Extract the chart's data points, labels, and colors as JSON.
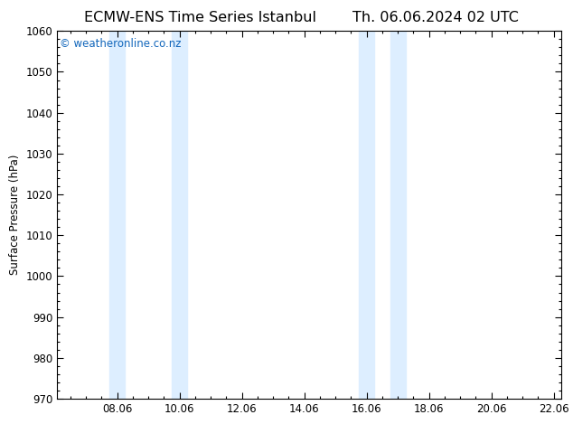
{
  "title_left": "ECMW-ENS Time Series Istanbul",
  "title_right": "Th. 06.06.2024 02 UTC",
  "ylabel": "Surface Pressure (hPa)",
  "ylim": [
    970,
    1060
  ],
  "yticks": [
    970,
    980,
    990,
    1000,
    1010,
    1020,
    1030,
    1040,
    1050,
    1060
  ],
  "xtick_labels": [
    "08.06",
    "10.06",
    "12.06",
    "14.06",
    "16.06",
    "18.06",
    "20.06",
    "22.06"
  ],
  "xtick_positions": [
    2,
    4,
    6,
    8,
    10,
    12,
    14,
    16
  ],
  "x_min": 0.083,
  "x_max": 16.25,
  "shaded_bands": [
    {
      "x_start": 1.75,
      "x_end": 2.25
    },
    {
      "x_start": 3.75,
      "x_end": 4.25
    },
    {
      "x_start": 9.75,
      "x_end": 10.25
    },
    {
      "x_start": 10.75,
      "x_end": 11.25
    }
  ],
  "band_color": "#ddeeff",
  "background_color": "#ffffff",
  "watermark_text": "© weatheronline.co.nz",
  "watermark_color": "#1166bb",
  "title_color": "#000000",
  "axis_color": "#000000",
  "tick_color": "#000000",
  "border_color": "#000000",
  "title_fontsize": 11.5,
  "label_fontsize": 8.5,
  "watermark_fontsize": 8.5
}
